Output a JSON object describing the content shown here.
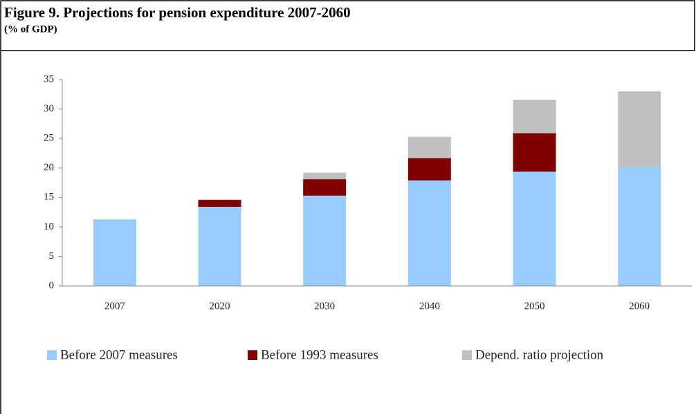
{
  "chart_data": {
    "type": "stacked_bar",
    "title": "Figure 9. Projections for pension expenditure 2007-2060",
    "subtitle": "(% of GDP)",
    "categories": [
      "2007",
      "2020",
      "2030",
      "2040",
      "2050",
      "2060"
    ],
    "series": [
      {
        "name": "Before 2007 measures",
        "color": "#99ccff",
        "values": [
          11.3,
          13.4,
          15.3,
          17.9,
          19.4,
          20.2
        ]
      },
      {
        "name": "Before 1993 measures",
        "color": "#800000",
        "values": [
          0,
          1.2,
          2.8,
          3.8,
          6.5,
          0
        ]
      },
      {
        "name": "Depend. ratio projection",
        "color": "#c0c0c0",
        "values": [
          0,
          0,
          1.1,
          3.6,
          5.7,
          12.8
        ]
      }
    ],
    "ylim": [
      0,
      35
    ],
    "yticks": [
      0,
      5,
      10,
      15,
      20,
      25,
      30,
      35
    ],
    "legend": "bottom"
  }
}
